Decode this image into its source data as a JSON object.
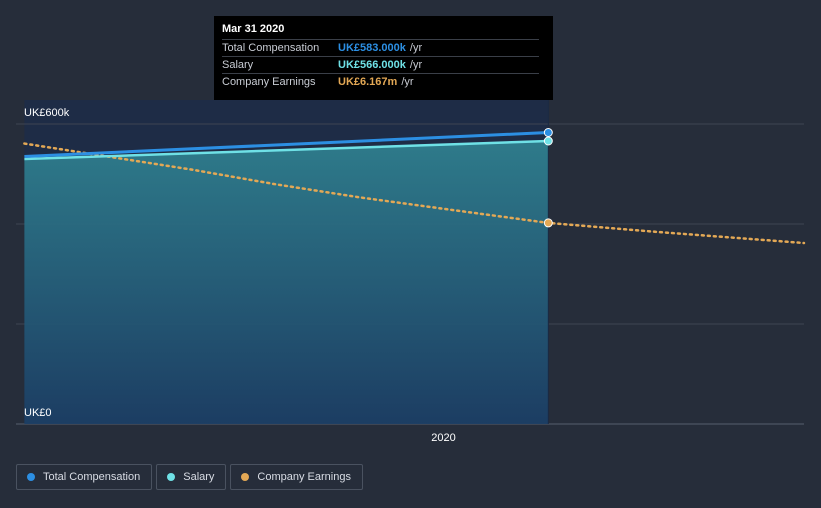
{
  "colors": {
    "total_compensation": "#2c8fe3",
    "salary": "#6fe1e6",
    "company_earnings": "#e3a855",
    "background": "#262d3a",
    "grid": "#3e4553"
  },
  "chart_data": {
    "type": "line",
    "x": [
      2019.0,
      2020.25
    ],
    "x_ticks": [
      2020
    ],
    "x_tick_labels": [
      "2020"
    ],
    "xlim": [
      2018.98,
      2020.86
    ],
    "ylim": [
      0,
      600
    ],
    "y_unit": "UK£k",
    "y_tick_labels": [
      "UK£600k",
      "UK£0"
    ],
    "series": [
      {
        "name": "Total Compensation",
        "unit": "k",
        "values": [
          535,
          583
        ]
      },
      {
        "name": "Salary",
        "unit": "k",
        "values": [
          530,
          566
        ]
      },
      {
        "name": "Company Earnings",
        "unit": "m",
        "x": [
          2019.0,
          2019.2,
          2019.4,
          2019.6,
          2019.8,
          2020.0,
          2020.25,
          2020.5,
          2020.86
        ],
        "values": [
          8.6,
          8.2,
          7.8,
          7.35,
          6.95,
          6.6,
          6.167,
          5.9,
          5.55
        ],
        "ylim": [
          0,
          9.2
        ]
      }
    ],
    "highlight_x": 2020.25
  },
  "tooltip": {
    "title": "Mar 31 2020",
    "rows": [
      {
        "label": "Total Compensation",
        "value": "UK£583.000k",
        "unit": "/yr"
      },
      {
        "label": "Salary",
        "value": "UK£566.000k",
        "unit": "/yr"
      },
      {
        "label": "Company Earnings",
        "value": "UK£6.167m",
        "unit": "/yr"
      }
    ]
  },
  "legend": {
    "items": [
      {
        "label": "Total Compensation"
      },
      {
        "label": "Salary"
      },
      {
        "label": "Company Earnings"
      }
    ]
  }
}
